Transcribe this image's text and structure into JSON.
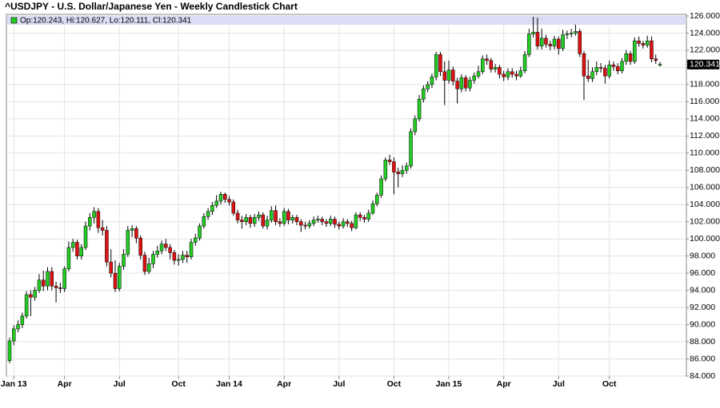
{
  "chart_data": {
    "type": "candlestick",
    "title": "^USDJPY - U.S. Dollar/Japanese Yen - Weekly Candlestick Chart",
    "legend_text": "Op:120.243, Hi:120.627, Lo:120.111, Cl:120.341",
    "up_color": "#22cc22",
    "down_color": "#dd1111",
    "grid": true,
    "categories": [
      null,
      "Jan 13",
      null,
      null,
      null,
      null,
      null,
      null,
      null,
      null,
      null,
      null,
      null,
      "Apr",
      null,
      null,
      null,
      null,
      null,
      null,
      null,
      null,
      null,
      null,
      null,
      null,
      "Jul",
      null,
      null,
      null,
      null,
      null,
      null,
      null,
      null,
      null,
      null,
      null,
      null,
      null,
      "Oct",
      null,
      null,
      null,
      null,
      null,
      null,
      null,
      null,
      null,
      null,
      null,
      "Jan 14",
      null,
      null,
      null,
      null,
      null,
      null,
      null,
      null,
      null,
      null,
      null,
      null,
      "Apr",
      null,
      null,
      null,
      null,
      null,
      null,
      null,
      null,
      null,
      null,
      null,
      null,
      "Jul",
      null,
      null,
      null,
      null,
      null,
      null,
      null,
      null,
      null,
      null,
      null,
      null,
      "Oct",
      null,
      null,
      null,
      null,
      null,
      null,
      null,
      null,
      null,
      null,
      null,
      null,
      "Jan 15",
      null,
      null,
      null,
      null,
      null,
      null,
      null,
      null,
      null,
      null,
      null,
      null,
      "Apr",
      null,
      null,
      null,
      null,
      null,
      null,
      null,
      null,
      null,
      null,
      null,
      null,
      "Jul",
      null,
      null,
      null,
      null,
      null,
      null,
      null,
      null,
      null,
      null,
      null,
      "Oct",
      null,
      null,
      null,
      null,
      null,
      null,
      null,
      null,
      null,
      null,
      null,
      null
    ],
    "open": [
      85.8,
      88.1,
      89.5,
      90.0,
      91.0,
      93.5,
      93.2,
      94.0,
      95.2,
      94.5,
      96.2,
      94.5,
      94.3,
      94.2,
      96.5,
      99.0,
      99.6,
      98.0,
      99.0,
      101.5,
      102.5,
      103.2,
      101.3,
      101.0,
      97.3,
      96.0,
      94.2,
      96.8,
      98.2,
      101.0,
      101.2,
      100.1,
      98.1,
      96.2,
      97.1,
      98.2,
      98.6,
      99.4,
      99.0,
      98.4,
      97.5,
      97.6,
      98.1,
      97.9,
      99.6,
      100.1,
      101.5,
      102.6,
      103.2,
      103.9,
      104.4,
      105.2,
      104.6,
      104.3,
      103.0,
      102.2,
      102.0,
      102.5,
      101.8,
      102.5,
      102.8,
      101.5,
      102.2,
      103.3,
      102.0,
      101.8,
      103.2,
      102.2,
      102.5,
      102.0,
      101.6,
      101.5,
      101.8,
      102.2,
      102.3,
      102.0,
      101.8,
      102.3,
      101.7,
      101.5,
      102.0,
      101.8,
      101.3,
      102.8,
      102.5,
      102.3,
      103.0,
      104.1,
      105.1,
      107.0,
      109.2,
      109.0,
      107.8,
      107.6,
      108.0,
      108.5,
      112.5,
      114.0,
      116.3,
      117.5,
      118.0,
      118.9,
      121.5,
      119.5,
      118.5,
      119.7,
      118.4,
      117.5,
      118.8,
      117.6,
      118.5,
      119.0,
      119.5,
      121.0,
      120.8,
      119.8,
      120.0,
      119.2,
      118.9,
      119.5,
      119.2,
      119.0,
      119.6,
      121.5,
      123.9,
      124.1,
      122.5,
      123.4,
      122.7,
      122.5,
      123.3,
      122.2,
      123.8,
      123.9,
      124.0,
      124.2,
      121.6,
      119.0,
      118.7,
      119.5,
      120.0,
      119.9,
      119.0,
      120.3,
      120.1,
      119.6,
      120.7,
      121.6,
      120.7,
      123.1,
      122.8,
      122.6,
      123.1,
      121.0,
      120.243
    ],
    "high": [
      88.5,
      89.9,
      90.5,
      91.4,
      93.9,
      94.0,
      94.4,
      95.9,
      96.3,
      96.7,
      96.7,
      95.0,
      94.9,
      96.8,
      99.7,
      100.0,
      99.9,
      99.4,
      102.0,
      103.0,
      103.7,
      103.6,
      102.2,
      101.5,
      98.8,
      97.5,
      97.2,
      98.8,
      101.5,
      101.6,
      101.5,
      100.4,
      98.5,
      97.8,
      98.6,
      99.2,
      99.8,
      100.0,
      99.4,
      98.7,
      98.2,
      98.6,
      98.6,
      100.0,
      100.6,
      101.8,
      103.0,
      103.6,
      104.3,
      105.1,
      105.5,
      105.4,
      105.0,
      104.6,
      103.4,
      102.7,
      102.9,
      102.8,
      102.9,
      103.2,
      103.1,
      102.7,
      103.8,
      103.9,
      102.4,
      103.6,
      103.5,
      102.8,
      102.8,
      102.3,
      102.0,
      102.2,
      102.6,
      102.7,
      102.6,
      102.3,
      102.7,
      102.6,
      102.0,
      102.4,
      102.3,
      102.1,
      103.1,
      103.1,
      102.8,
      103.4,
      104.5,
      105.4,
      107.4,
      109.5,
      109.8,
      109.5,
      108.3,
      108.6,
      108.9,
      112.9,
      114.4,
      116.8,
      117.9,
      118.4,
      119.3,
      121.8,
      121.8,
      120.7,
      120.8,
      120.1,
      118.8,
      119.2,
      119.1,
      118.9,
      119.4,
      120.2,
      121.4,
      121.5,
      121.1,
      120.4,
      120.3,
      119.6,
      119.9,
      119.9,
      119.6,
      120.1,
      121.9,
      124.5,
      125.9,
      125.8,
      124.5,
      123.8,
      123.1,
      123.7,
      123.6,
      124.4,
      124.3,
      124.5,
      125.0,
      124.5,
      121.9,
      120.9,
      120.0,
      120.7,
      120.5,
      120.3,
      120.8,
      120.7,
      120.5,
      121.1,
      122.0,
      121.9,
      123.5,
      123.6,
      123.1,
      123.7,
      123.6,
      121.5,
      120.627
    ],
    "low": [
      85.5,
      87.6,
      89.1,
      89.6,
      90.7,
      91.0,
      92.8,
      93.7,
      93.9,
      94.0,
      94.0,
      92.6,
      93.7,
      93.8,
      96.2,
      98.5,
      97.6,
      97.6,
      98.7,
      101.0,
      101.8,
      100.7,
      100.4,
      96.8,
      95.5,
      93.8,
      93.9,
      96.4,
      97.9,
      100.2,
      99.5,
      97.6,
      95.8,
      95.9,
      96.6,
      97.8,
      98.2,
      98.6,
      97.6,
      97.0,
      96.9,
      97.2,
      97.2,
      97.6,
      99.2,
      99.8,
      101.2,
      102.2,
      102.8,
      103.6,
      104.0,
      104.2,
      103.9,
      102.7,
      101.8,
      101.2,
      101.6,
      101.3,
      101.4,
      102.1,
      101.2,
      101.1,
      101.9,
      101.6,
      101.4,
      101.5,
      101.7,
      101.8,
      101.6,
      100.8,
      101.1,
      101.2,
      101.5,
      101.9,
      101.6,
      101.4,
      101.5,
      101.3,
      101.1,
      101.2,
      101.4,
      100.9,
      101.1,
      102.1,
      101.9,
      102.0,
      102.8,
      103.8,
      104.8,
      106.7,
      108.6,
      105.2,
      106.0,
      107.2,
      107.6,
      108.2,
      112.1,
      113.7,
      115.9,
      117.1,
      117.6,
      118.5,
      119.0,
      115.6,
      118.1,
      117.9,
      115.8,
      117.1,
      117.2,
      117.2,
      118.1,
      118.7,
      119.2,
      120.3,
      119.4,
      119.4,
      118.7,
      118.4,
      118.5,
      118.8,
      118.5,
      118.8,
      119.3,
      121.2,
      123.5,
      122.1,
      122.1,
      122.3,
      122.0,
      122.1,
      121.5,
      121.9,
      123.3,
      123.5,
      123.7,
      121.2,
      116.2,
      118.3,
      118.3,
      119.1,
      119.4,
      118.1,
      118.7,
      119.6,
      119.2,
      119.3,
      120.3,
      120.3,
      120.4,
      122.4,
      122.2,
      122.3,
      120.6,
      120.4,
      120.111
    ],
    "close": [
      88.1,
      89.5,
      90.0,
      91.0,
      93.5,
      93.2,
      94.0,
      95.2,
      94.5,
      96.2,
      94.5,
      94.3,
      94.2,
      96.5,
      99.0,
      99.6,
      98.0,
      99.0,
      101.5,
      102.5,
      103.2,
      101.3,
      101.0,
      97.3,
      96.0,
      94.2,
      96.8,
      98.2,
      101.0,
      101.2,
      100.1,
      98.1,
      96.2,
      97.1,
      98.2,
      98.6,
      99.4,
      99.0,
      98.4,
      97.5,
      97.6,
      98.1,
      97.9,
      99.6,
      100.1,
      101.5,
      102.6,
      103.2,
      103.9,
      104.4,
      105.2,
      104.6,
      104.3,
      103.0,
      102.2,
      102.0,
      102.5,
      101.8,
      102.5,
      102.8,
      101.5,
      102.2,
      103.3,
      102.0,
      101.8,
      103.2,
      102.2,
      102.5,
      102.0,
      101.6,
      101.5,
      101.8,
      102.2,
      102.3,
      102.0,
      101.8,
      102.3,
      101.7,
      101.5,
      102.0,
      101.8,
      101.3,
      102.8,
      102.5,
      102.3,
      103.0,
      104.1,
      105.1,
      107.0,
      109.2,
      109.0,
      107.8,
      107.6,
      108.0,
      108.5,
      112.5,
      114.0,
      116.3,
      117.5,
      118.0,
      118.9,
      121.5,
      119.5,
      118.5,
      119.7,
      118.4,
      117.5,
      118.8,
      117.6,
      118.5,
      119.0,
      119.5,
      121.0,
      120.8,
      119.8,
      120.0,
      119.2,
      118.9,
      119.5,
      119.2,
      119.0,
      119.6,
      121.5,
      123.9,
      124.1,
      122.5,
      123.4,
      122.7,
      122.5,
      123.3,
      122.2,
      123.8,
      123.9,
      124.0,
      124.2,
      121.6,
      119.0,
      118.7,
      119.5,
      120.0,
      119.9,
      119.0,
      120.3,
      120.1,
      119.6,
      120.7,
      121.6,
      120.7,
      123.1,
      122.8,
      122.6,
      123.1,
      121.0,
      120.8,
      120.341
    ],
    "ylim": [
      84,
      126
    ],
    "yticks": [
      {
        "value": 84,
        "label": "84.000"
      },
      {
        "value": 86,
        "label": "86.000"
      },
      {
        "value": 88,
        "label": "88.000"
      },
      {
        "value": 90,
        "label": "90.000"
      },
      {
        "value": 92,
        "label": "92.000"
      },
      {
        "value": 94,
        "label": "94.000"
      },
      {
        "value": 96,
        "label": "96.000"
      },
      {
        "value": 98,
        "label": "98.000"
      },
      {
        "value": 100,
        "label": "100.000"
      },
      {
        "value": 102,
        "label": "102.000"
      },
      {
        "value": 104,
        "label": "104.000"
      },
      {
        "value": 106,
        "label": "106.000"
      },
      {
        "value": 108,
        "label": "108.000"
      },
      {
        "value": 110,
        "label": "110.000"
      },
      {
        "value": 112,
        "label": "112.000"
      },
      {
        "value": 114,
        "label": "114.000"
      },
      {
        "value": 116,
        "label": "116.000"
      },
      {
        "value": 118,
        "label": "118.000"
      },
      {
        "value": 120,
        "label": "120.000"
      },
      {
        "value": 122,
        "label": "122.000"
      },
      {
        "value": 124,
        "label": "124.000"
      },
      {
        "value": 126,
        "label": "126.000"
      }
    ]
  }
}
